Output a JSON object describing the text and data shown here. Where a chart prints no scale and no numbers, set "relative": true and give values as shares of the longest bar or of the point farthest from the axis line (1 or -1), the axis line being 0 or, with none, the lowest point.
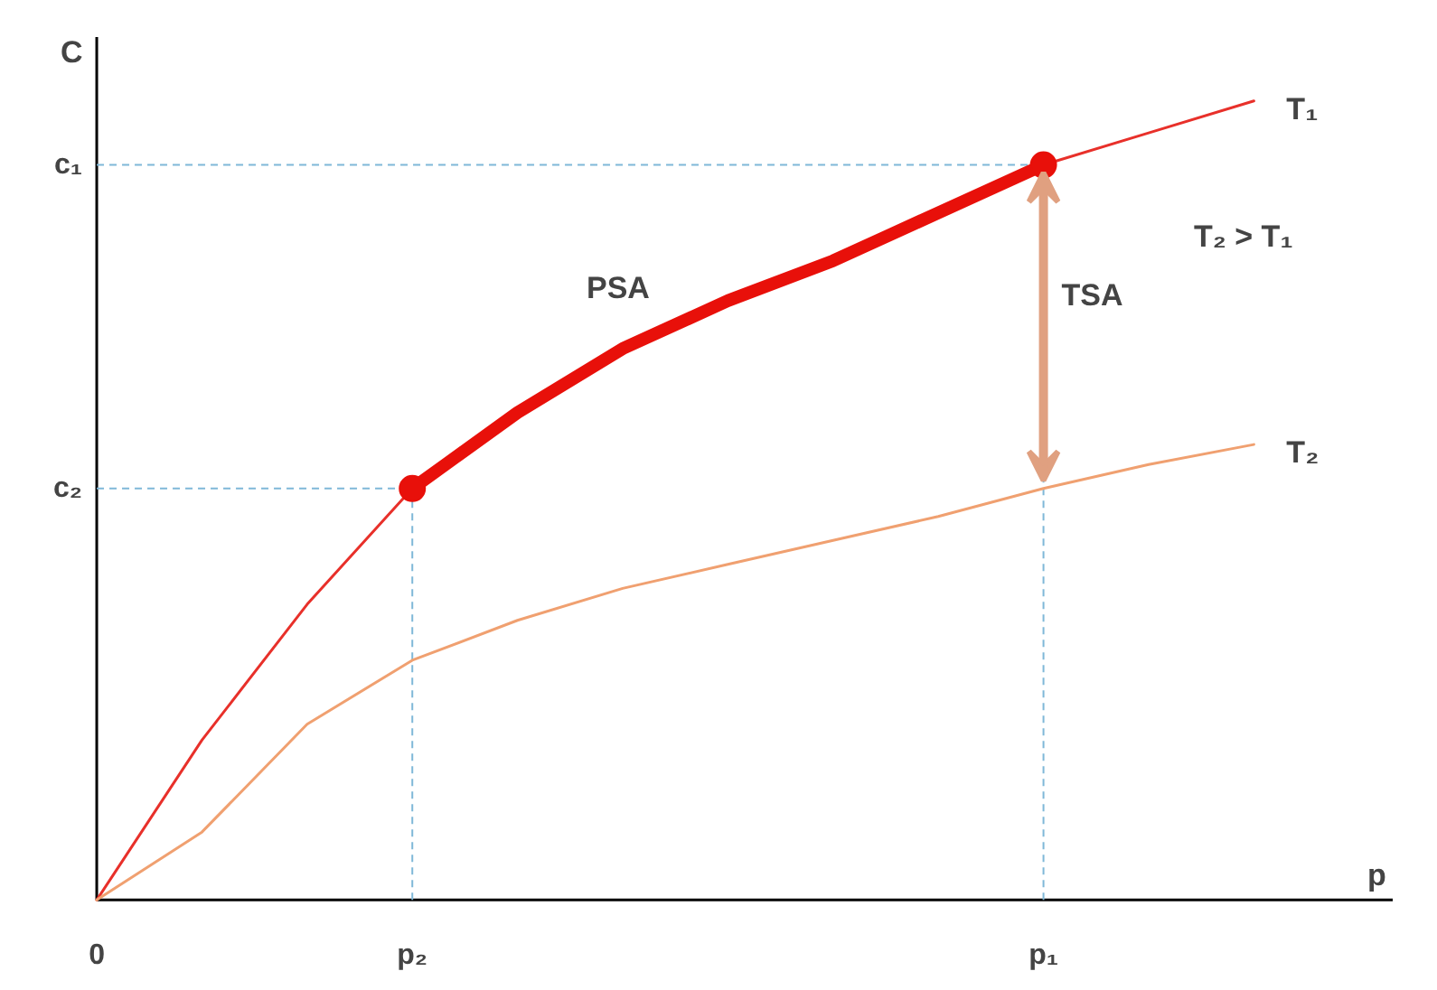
{
  "chart_data": {
    "type": "line",
    "relative": true,
    "xlabel": "p",
    "ylabel": "C",
    "grid": false,
    "categories": [
      "0",
      null,
      null,
      "p₂",
      null,
      null,
      null,
      null,
      null,
      "p₁",
      null,
      null
    ],
    "series": [
      {
        "name": "T₁",
        "color": "#e8302a",
        "values": [
          0,
          0.2,
          0.37,
          0.515,
          0.61,
          0.69,
          0.75,
          0.8,
          0.86,
          0.92,
          0.96,
          1.0
        ]
      },
      {
        "name": "T₂",
        "color": "#f0a070",
        "values": [
          0,
          0.085,
          0.22,
          0.3,
          0.35,
          0.39,
          0.42,
          0.45,
          0.48,
          0.515,
          0.545,
          0.57
        ]
      },
      {
        "name": "PSA",
        "color": "#e8100a",
        "values": [
          null,
          null,
          null,
          0.515,
          0.61,
          0.69,
          0.75,
          0.8,
          0.86,
          0.92,
          null,
          null
        ]
      },
      {
        "type": "scatter",
        "marker": "circle",
        "color": "#e8100a",
        "values": [
          null,
          null,
          null,
          0.515,
          null,
          null,
          null,
          null,
          null,
          0.92,
          null,
          null
        ]
      }
    ],
    "ref_lines": [
      {
        "axis": "y",
        "value": 0.92,
        "label": "c₁",
        "color": "#7fb8d8",
        "line_style": "dashed"
      },
      {
        "axis": "y",
        "value": 0.515,
        "label": "c₂",
        "color": "#7fb8d8",
        "line_style": "dashed"
      }
    ],
    "annotations": [
      "TSA",
      "T₂ > T₁"
    ]
  }
}
